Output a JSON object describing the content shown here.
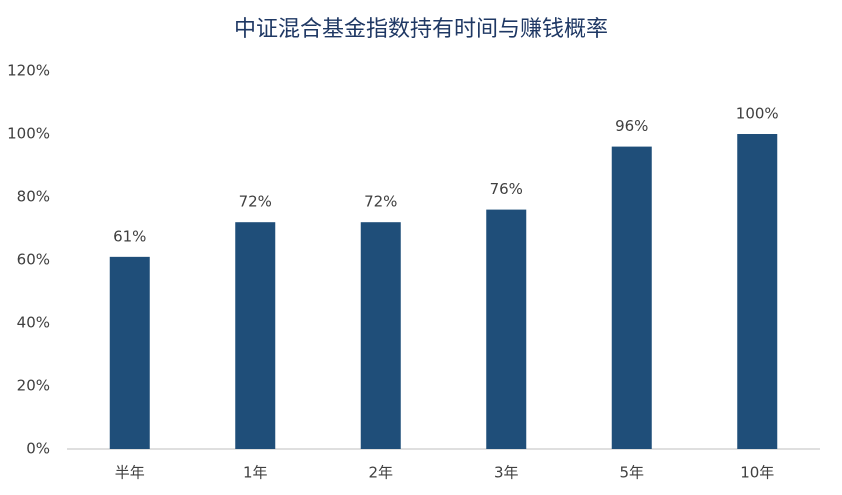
{
  "chart_data": {
    "type": "bar",
    "title": "中证混合基金指数持有时间与赚钱概率",
    "categories": [
      "半年",
      "1年",
      "2年",
      "3年",
      "5年",
      "10年"
    ],
    "values": [
      61,
      72,
      72,
      76,
      96,
      100
    ],
    "value_labels": [
      "61%",
      "72%",
      "72%",
      "76%",
      "96%",
      "100%"
    ],
    "color": "#1f4e79",
    "ylim": [
      0,
      120
    ],
    "yticks": [
      {
        "value": 0,
        "label": "0%"
      },
      {
        "value": 20,
        "label": "20%"
      },
      {
        "value": 40,
        "label": "40%"
      },
      {
        "value": 60,
        "label": "60%"
      },
      {
        "value": 80,
        "label": "80%"
      },
      {
        "value": 100,
        "label": "100%"
      },
      {
        "value": 120,
        "label": "120%"
      }
    ],
    "grid": false
  }
}
